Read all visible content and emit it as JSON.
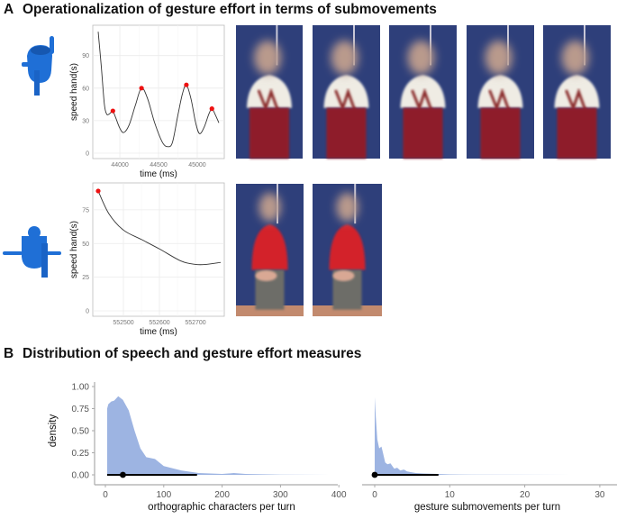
{
  "panel_a": {
    "letter": "A",
    "title": "Operationalization of gesture effort in terms of submovements"
  },
  "panel_b": {
    "letter": "B",
    "title": "Distribution of speech and gesture effort measures"
  },
  "colors": {
    "avatar": "#1f6fd6",
    "peak": "#ee1111",
    "density": "#9db4e2",
    "line": "#333333"
  },
  "chart_data": [
    {
      "type": "line",
      "xlabel": "time (ms)",
      "ylabel": "speed hand(s)",
      "xticks": [
        44000,
        44500,
        45000
      ],
      "yticks": [
        0,
        30,
        60,
        90
      ],
      "xlim": [
        43650,
        45350
      ],
      "ylim": [
        -5,
        118
      ],
      "x": [
        43720,
        43760,
        43800,
        43830,
        43860,
        43890,
        43910,
        43950,
        44000,
        44050,
        44120,
        44200,
        44280,
        44360,
        44450,
        44550,
        44620,
        44680,
        44750,
        44810,
        44860,
        44920,
        44980,
        45030,
        45090,
        45150,
        45190,
        45230,
        45280
      ],
      "y": [
        112,
        80,
        45,
        36,
        36,
        38,
        39,
        32,
        23,
        19,
        26,
        44,
        60,
        50,
        28,
        10,
        6,
        10,
        35,
        55,
        63,
        50,
        28,
        18,
        24,
        36,
        41,
        36,
        28
      ],
      "peaks": [
        {
          "x": 43910,
          "y": 39
        },
        {
          "x": 44280,
          "y": 60
        },
        {
          "x": 44860,
          "y": 63
        },
        {
          "x": 45190,
          "y": 41
        }
      ]
    },
    {
      "type": "line",
      "xlabel": "time (ms)",
      "ylabel": "speed hand(s)",
      "xticks": [
        552500,
        552600,
        552700
      ],
      "yticks": [
        0,
        25,
        50,
        75
      ],
      "xlim": [
        552415,
        552780
      ],
      "ylim": [
        -4,
        95
      ],
      "x": [
        552430,
        552460,
        552500,
        552550,
        552600,
        552660,
        552700,
        552730,
        552770
      ],
      "y": [
        89,
        72,
        60,
        53,
        46,
        37,
        34.5,
        34.5,
        36
      ],
      "peaks": [
        {
          "x": 552430,
          "y": 89
        }
      ]
    },
    {
      "type": "area",
      "xlabel": "orthographic characters per turn",
      "ylabel": "density",
      "xticks": [
        0,
        100,
        200,
        300,
        400
      ],
      "yticks": [
        "0.00",
        "0.25",
        "0.50",
        "0.75",
        "1.00"
      ],
      "xlim": [
        -18,
        400
      ],
      "ylim": [
        -0.11,
        1.05
      ],
      "x": [
        3,
        5,
        10,
        15,
        22,
        30,
        40,
        50,
        60,
        70,
        85,
        100,
        130,
        160,
        200,
        220,
        240,
        300,
        385
      ],
      "y": [
        0.75,
        0.8,
        0.83,
        0.84,
        0.89,
        0.85,
        0.73,
        0.5,
        0.3,
        0.2,
        0.18,
        0.1,
        0.05,
        0.02,
        0.01,
        0.02,
        0.01,
        0.003,
        0
      ],
      "point": 30,
      "interval": [
        3,
        157
      ]
    },
    {
      "type": "area",
      "xlabel": "gesture submovements per turn",
      "ylabel": "",
      "xticks": [
        0,
        10,
        20,
        30
      ],
      "yticks": [],
      "xlim": [
        -1.7,
        32.2
      ],
      "ylim": [
        -0.11,
        1.05
      ],
      "x": [
        0,
        0.15,
        0.35,
        0.6,
        0.9,
        1.1,
        1.4,
        1.7,
        2.1,
        2.6,
        3.0,
        3.4,
        3.9,
        4.3,
        4.8,
        5.5,
        6.5,
        8,
        10,
        13,
        30
      ],
      "y": [
        0.88,
        0.65,
        0.4,
        0.3,
        0.32,
        0.25,
        0.14,
        0.12,
        0.13,
        0.07,
        0.08,
        0.05,
        0.06,
        0.04,
        0.03,
        0.02,
        0.015,
        0.012,
        0.005,
        0.002,
        0
      ],
      "point": 0,
      "interval": [
        0,
        8.5
      ]
    }
  ]
}
